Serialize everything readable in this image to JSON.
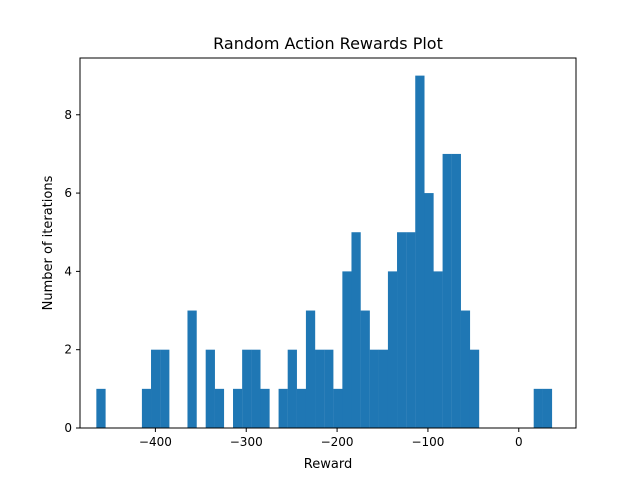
{
  "chart_data": {
    "type": "bar",
    "title": "Random Action Rewards Plot",
    "xlabel": "Reward",
    "ylabel": "Number of iterations",
    "xlim": [
      -483,
      63
    ],
    "ylim": [
      0,
      9.45
    ],
    "xticks": [
      -400,
      -300,
      -200,
      -100,
      0
    ],
    "xtick_labels": [
      "−400",
      "−300",
      "−200",
      "−100",
      "0"
    ],
    "yticks": [
      0,
      2,
      4,
      6,
      8
    ],
    "yticks_labels": [
      "0",
      "2",
      "4",
      "6",
      "8"
    ],
    "grid": false,
    "legend": "none",
    "bar_color": "#1f77b4",
    "bin_start": -465,
    "bin_width": 10.03,
    "counts": [
      1,
      0,
      0,
      0,
      0,
      1,
      2,
      2,
      0,
      0,
      3,
      0,
      2,
      1,
      0,
      1,
      2,
      2,
      1,
      0,
      1,
      2,
      1,
      3,
      2,
      2,
      1,
      4,
      5,
      3,
      2,
      2,
      4,
      5,
      5,
      9,
      6,
      4,
      7,
      7,
      3,
      2,
      0,
      0,
      0,
      0,
      0,
      0,
      1,
      1
    ]
  }
}
